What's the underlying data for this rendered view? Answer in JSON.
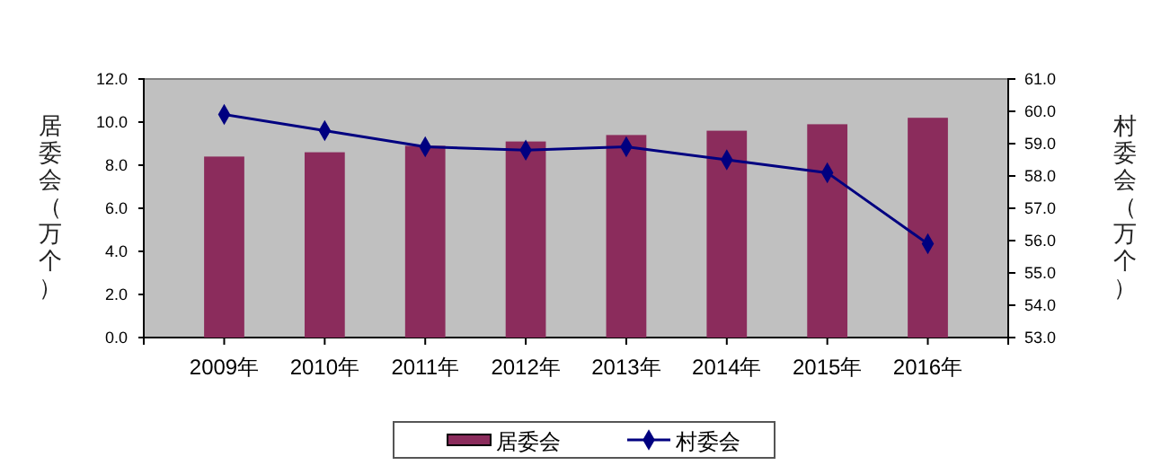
{
  "chart_data": {
    "type": "bar",
    "ylabel": "居委会（万个）",
    "y2label": "村委会（万个）",
    "categories": [
      "2009年",
      "2010年",
      "2011年",
      "2012年",
      "2013年",
      "2014年",
      "2015年",
      "2016年"
    ],
    "series": [
      {
        "name": "居委会",
        "color": "#8b2c5c",
        "values": [
          8.4,
          8.6,
          8.9,
          9.1,
          9.4,
          9.6,
          9.9,
          10.2
        ]
      },
      {
        "name": "村委会",
        "type": "line",
        "axis": "y2",
        "color": "#000080",
        "marker": "diamond",
        "values": [
          59.9,
          59.4,
          58.9,
          58.8,
          58.9,
          58.5,
          58.1,
          55.9
        ]
      }
    ],
    "ylim": [
      0,
      12
    ],
    "yticks": [
      {
        "value": 0,
        "label": "0.0"
      },
      {
        "value": 2,
        "label": "2.0"
      },
      {
        "value": 4,
        "label": "4.0"
      },
      {
        "value": 6,
        "label": "6.0"
      },
      {
        "value": 8,
        "label": "8.0"
      },
      {
        "value": 10,
        "label": "10.0"
      },
      {
        "value": 12,
        "label": "12.0"
      }
    ],
    "y2lim": [
      53,
      61
    ],
    "y2ticks": [
      {
        "value": 53,
        "label": "53.0"
      },
      {
        "value": 54,
        "label": "54.0"
      },
      {
        "value": 55,
        "label": "55.0"
      },
      {
        "value": 56,
        "label": "56.0"
      },
      {
        "value": 57,
        "label": "57.0"
      },
      {
        "value": 58,
        "label": "58.0"
      },
      {
        "value": 59,
        "label": "59.0"
      },
      {
        "value": 60,
        "label": "60.0"
      },
      {
        "value": 61,
        "label": "61.0"
      }
    ],
    "grid": false,
    "legend": "bottom"
  }
}
